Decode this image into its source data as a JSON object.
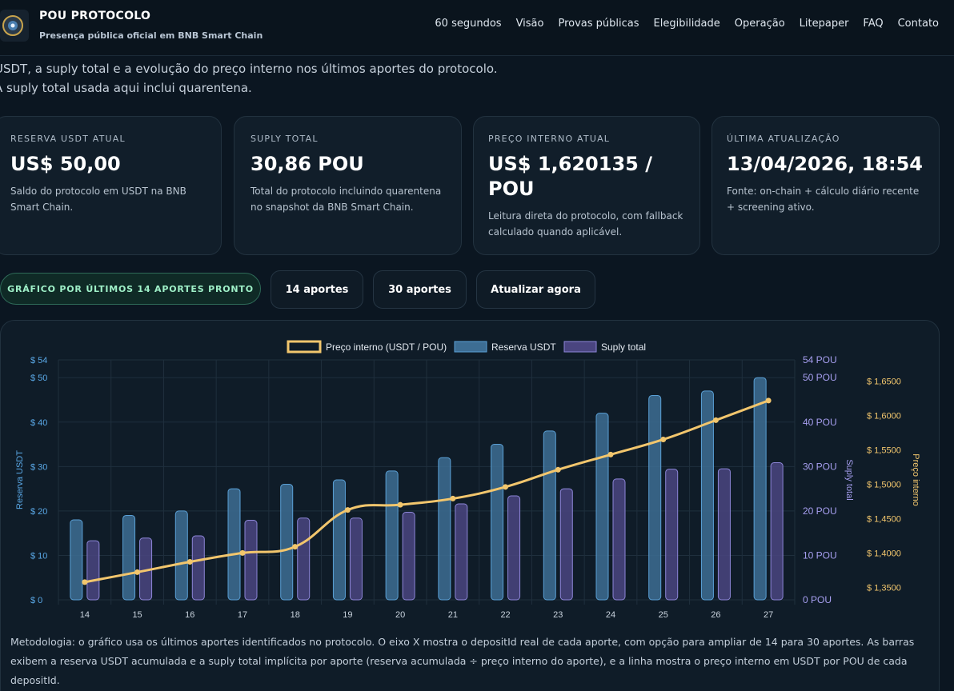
{
  "header": {
    "title": "POU PROTOCOLO",
    "subtitle": "Presença pública oficial em BNB Smart Chain",
    "nav": [
      "60 segundos",
      "Visão",
      "Provas públicas",
      "Elegibilidade",
      "Operação",
      "Litepaper",
      "FAQ",
      "Contato"
    ]
  },
  "intro": "USDT, a suply total e a evolução do preço interno nos últimos aportes do protocolo. A suply total usada aqui inclui quarentena.",
  "cards": [
    {
      "label": "RESERVA USDT ATUAL",
      "value": "US$ 50,00",
      "desc": "Saldo do protocolo em USDT na BNB Smart Chain."
    },
    {
      "label": "SUPLY TOTAL",
      "value": "30,86 POU",
      "desc": "Total do protocolo incluindo quarentena no snapshot da BNB Smart Chain."
    },
    {
      "label": "PREÇO INTERNO ATUAL",
      "value": "US$ 1,620135 / POU",
      "desc": "Leitura direta do protocolo, com fallback calculado quando aplicável."
    },
    {
      "label": "ÚLTIMA ATUALIZAÇÃO",
      "value": "13/04/2026, 18:54",
      "desc": "Fonte: on-chain + cálculo diário recente + screening ativo."
    }
  ],
  "controls": {
    "status": "GRÁFICO POR ÚLTIMOS 14 APORTES PRONTO",
    "btn14": "14 aportes",
    "btn30": "30 aportes",
    "refresh": "Atualizar agora"
  },
  "colors": {
    "reserve": "#3d6d93",
    "reserve_border": "#5aa0d6",
    "supply": "#4a4580",
    "supply_border": "#8d86d8",
    "price": "#f2c66d"
  },
  "chart_data": {
    "type": "bar",
    "categories": [
      "14",
      "15",
      "16",
      "17",
      "18",
      "19",
      "20",
      "21",
      "22",
      "23",
      "24",
      "25",
      "26",
      "27"
    ],
    "series": [
      {
        "name": "Preço interno (USDT / POU)",
        "kind": "line",
        "axis": "price",
        "values": [
          1.3575,
          1.372,
          1.387,
          1.4,
          1.409,
          1.4625,
          1.47,
          1.479,
          1.496,
          1.521,
          1.543,
          1.565,
          1.593,
          1.6215
        ]
      },
      {
        "name": "Reserva USDT",
        "kind": "bar",
        "axis": "reserve",
        "values": [
          18,
          19,
          20,
          25,
          26,
          27,
          29,
          32,
          35,
          38,
          42,
          46,
          47,
          50
        ]
      },
      {
        "name": "Suply total",
        "kind": "bar",
        "axis": "supply",
        "values": [
          13.3,
          13.9,
          14.4,
          17.9,
          18.4,
          18.4,
          19.7,
          21.6,
          23.4,
          25.0,
          27.2,
          29.4,
          29.5,
          30.86
        ]
      }
    ],
    "axes": {
      "reserve": {
        "label": "Reserva USDT",
        "range": [
          0,
          54
        ],
        "ticks": [
          "$ 0",
          "$ 10",
          "$ 20",
          "$ 30",
          "$ 40",
          "$ 50",
          "$ 54"
        ],
        "tick_values": [
          0,
          10,
          20,
          30,
          40,
          50,
          54
        ]
      },
      "supply": {
        "label": "Suply total",
        "range": [
          0,
          54
        ],
        "ticks": [
          "0 POU",
          "10 POU",
          "20 POU",
          "30 POU",
          "40 POU",
          "50 POU",
          "54 POU"
        ],
        "tick_values": [
          0,
          10,
          20,
          30,
          40,
          50,
          54
        ]
      },
      "price": {
        "label": "Preço interno",
        "range": [
          1.3318,
          1.6807
        ],
        "ticks": [
          "$ 1,3500",
          "$ 1,4000",
          "$ 1,4500",
          "$ 1,5000",
          "$ 1,5500",
          "$ 1,6000",
          "$ 1,6500"
        ],
        "tick_values": [
          1.35,
          1.4,
          1.45,
          1.5,
          1.55,
          1.6,
          1.65
        ]
      }
    },
    "legend_position": "top-center",
    "grid": true
  },
  "methodology": "Metodologia: o gráfico usa os últimos aportes identificados no protocolo. O eixo X mostra o depositId real de cada aporte, com opção para ampliar de 14 para 30 aportes. As barras exibem a reserva USDT acumulada e a suply total implícita por aporte (reserva acumulada ÷ preço interno do aporte), e a linha mostra o preço interno em USDT por POU de cada depositId."
}
